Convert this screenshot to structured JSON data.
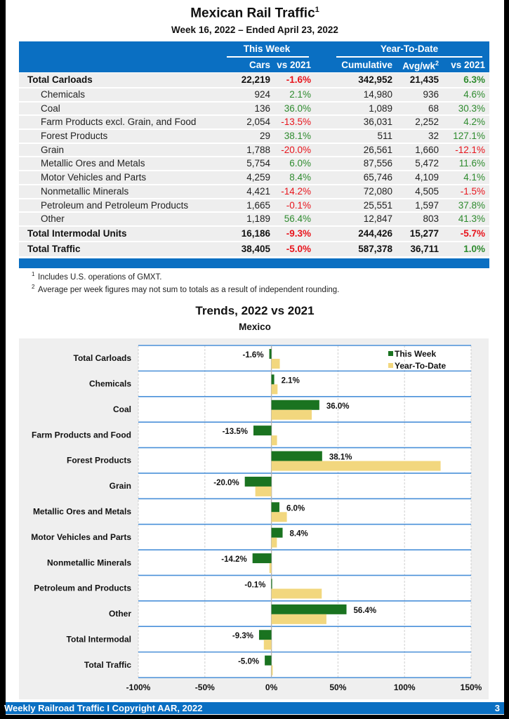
{
  "header": {
    "title": "Mexican Rail Traffic",
    "title_footnote": "1",
    "subtitle": "Week 16, 2022 – Ended April 23, 2022"
  },
  "table": {
    "group_headers": {
      "this_week": "This Week",
      "ytd": "Year-To-Date"
    },
    "columns": {
      "cars": "Cars",
      "tw_vs": "vs 2021",
      "cumulative": "Cumulative",
      "avgwk": "Avg/wk",
      "avgwk_footnote": "2",
      "ytd_vs": "vs 2021"
    },
    "rows": [
      {
        "label": "Total Carloads",
        "bold": true,
        "cars": "22,219",
        "tw_vs": "-1.6%",
        "cumulative": "342,952",
        "avgwk": "21,435",
        "ytd_vs": "6.3%"
      },
      {
        "label": "Chemicals",
        "bold": false,
        "cars": "924",
        "tw_vs": "2.1%",
        "cumulative": "14,980",
        "avgwk": "936",
        "ytd_vs": "4.6%"
      },
      {
        "label": "Coal",
        "bold": false,
        "cars": "136",
        "tw_vs": "36.0%",
        "cumulative": "1,089",
        "avgwk": "68",
        "ytd_vs": "30.3%"
      },
      {
        "label": "Farm Products excl. Grain, and Food",
        "bold": false,
        "cars": "2,054",
        "tw_vs": "-13.5%",
        "cumulative": "36,031",
        "avgwk": "2,252",
        "ytd_vs": "4.2%"
      },
      {
        "label": "Forest Products",
        "bold": false,
        "cars": "29",
        "tw_vs": "38.1%",
        "cumulative": "511",
        "avgwk": "32",
        "ytd_vs": "127.1%"
      },
      {
        "label": "Grain",
        "bold": false,
        "cars": "1,788",
        "tw_vs": "-20.0%",
        "cumulative": "26,561",
        "avgwk": "1,660",
        "ytd_vs": "-12.1%"
      },
      {
        "label": "Metallic Ores and Metals",
        "bold": false,
        "cars": "5,754",
        "tw_vs": "6.0%",
        "cumulative": "87,556",
        "avgwk": "5,472",
        "ytd_vs": "11.6%"
      },
      {
        "label": "Motor Vehicles and Parts",
        "bold": false,
        "cars": "4,259",
        "tw_vs": "8.4%",
        "cumulative": "65,746",
        "avgwk": "4,109",
        "ytd_vs": "4.1%"
      },
      {
        "label": "Nonmetallic Minerals",
        "bold": false,
        "cars": "4,421",
        "tw_vs": "-14.2%",
        "cumulative": "72,080",
        "avgwk": "4,505",
        "ytd_vs": "-1.5%"
      },
      {
        "label": "Petroleum and Petroleum Products",
        "bold": false,
        "cars": "1,665",
        "tw_vs": "-0.1%",
        "cumulative": "25,551",
        "avgwk": "1,597",
        "ytd_vs": "37.8%"
      },
      {
        "label": "Other",
        "bold": false,
        "cars": "1,189",
        "tw_vs": "56.4%",
        "cumulative": "12,847",
        "avgwk": "803",
        "ytd_vs": "41.3%"
      },
      {
        "label": "Total Intermodal Units",
        "bold": true,
        "cars": "16,186",
        "tw_vs": "-9.3%",
        "cumulative": "244,426",
        "avgwk": "15,277",
        "ytd_vs": "-5.7%"
      },
      {
        "label": "Total Traffic",
        "bold": true,
        "cars": "38,405",
        "tw_vs": "-5.0%",
        "cumulative": "587,378",
        "avgwk": "36,711",
        "ytd_vs": "1.0%"
      }
    ],
    "colors": {
      "header_bg": "#0a6fc2",
      "negative": "#e8141c",
      "positive": "#2e8b2e",
      "row_bg": "#eeeeee"
    }
  },
  "footnotes": [
    {
      "mark": "1",
      "text": "Includes U.S. operations of GMXT."
    },
    {
      "mark": "2",
      "text": "Average per week figures may not sum to totals as a result of independent rounding."
    }
  ],
  "chart_data": {
    "type": "bar",
    "orientation": "horizontal",
    "title": "Trends, 2022 vs 2021",
    "subtitle": "Mexico",
    "categories": [
      "Total Carloads",
      "Chemicals",
      "Coal",
      "Farm Products and Food",
      "Forest Products",
      "Grain",
      "Metallic Ores and Metals",
      "Motor Vehicles and Parts",
      "Nonmetallic Minerals",
      "Petroleum and Products",
      "Other",
      "Total Intermodal",
      "Total Traffic"
    ],
    "series": [
      {
        "name": "This Week",
        "color": "#1a7320",
        "values": [
          -1.6,
          2.1,
          36.0,
          -13.5,
          38.1,
          -20.0,
          6.0,
          8.4,
          -14.2,
          -0.1,
          56.4,
          -9.3,
          -5.0
        ],
        "labels": [
          "-1.6%",
          "2.1%",
          "36.0%",
          "-13.5%",
          "38.1%",
          "-20.0%",
          "6.0%",
          "8.4%",
          "-14.2%",
          "-0.1%",
          "56.4%",
          "-9.3%",
          "-5.0%"
        ]
      },
      {
        "name": "Year-To-Date",
        "color": "#f2d77e",
        "values": [
          6.3,
          4.6,
          30.3,
          4.2,
          127.1,
          -12.1,
          11.6,
          4.1,
          -1.5,
          37.8,
          41.3,
          -5.7,
          1.0
        ]
      }
    ],
    "xlim": [
      -100,
      150
    ],
    "xticks": [
      -100,
      -50,
      0,
      50,
      100,
      150
    ],
    "xtick_labels": [
      "-100%",
      "-50%",
      "0%",
      "50%",
      "100%",
      "150%"
    ],
    "xlabel": "",
    "ylabel": "",
    "grid": true,
    "legend": "top-right"
  },
  "footer": {
    "text": "Weekly Railroad Traffic I Copyright AAR, 2022",
    "page": "3"
  }
}
